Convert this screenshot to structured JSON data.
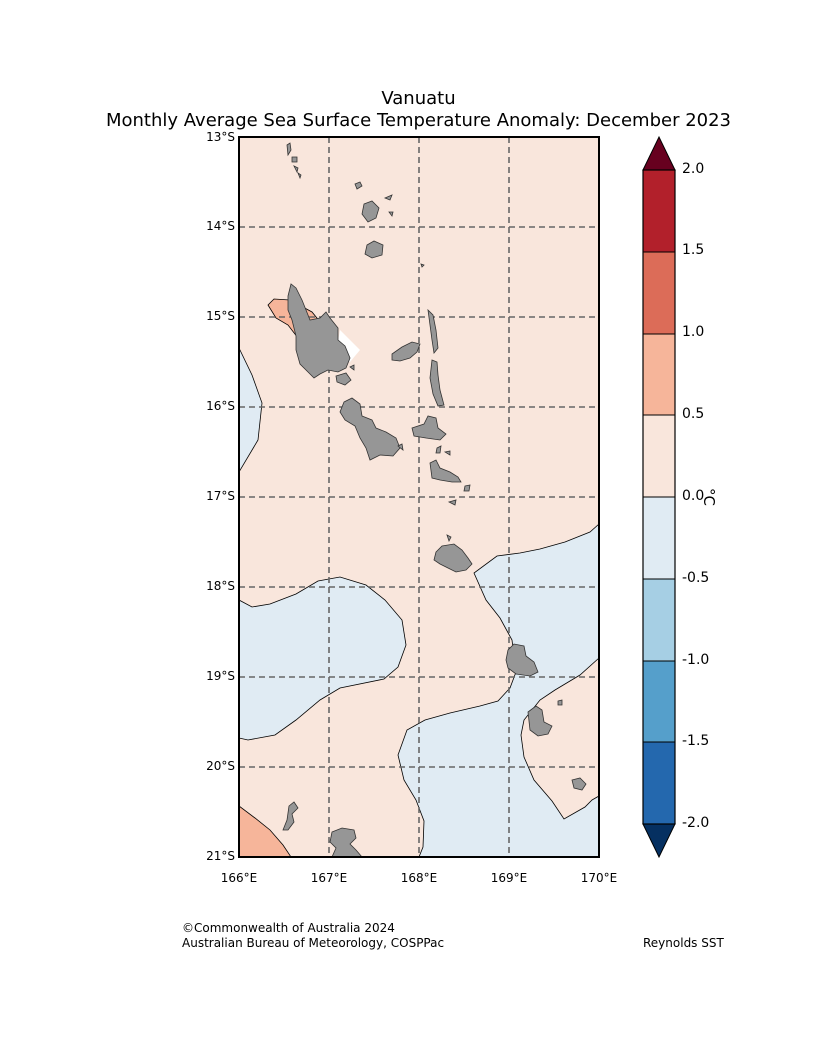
{
  "title": {
    "line1": "Vanuatu",
    "line2": "Monthly Average Sea Surface Temperature Anomaly: December 2023"
  },
  "map": {
    "lat_labels": [
      "13°S",
      "14°S",
      "15°S",
      "16°S",
      "17°S",
      "18°S",
      "19°S",
      "20°S",
      "21°S"
    ],
    "lon_labels": [
      "166°E",
      "167°E",
      "168°E",
      "169°E",
      "170°E"
    ],
    "land_color": "#969696",
    "gridlines": "dashed"
  },
  "colorbar": {
    "unit": "°C",
    "tick_labels": [
      "2.0",
      "1.5",
      "1.0",
      "0.5",
      "0.0",
      "-0.5",
      "-1.0",
      "-1.5",
      "-2.0"
    ],
    "colors_top_to_bottom": [
      "#b2202b",
      "#dc6c58",
      "#f6b59a",
      "#f9e6dc",
      "#e0ebf3",
      "#a6cfe4",
      "#559fcb",
      "#2468ae"
    ],
    "extend_max_color": "#67001f",
    "extend_min_color": "#053061"
  },
  "footer": {
    "copyright": "©Commonwealth of Australia 2024",
    "source": "Australian Bureau of Meteorology, COSPPac",
    "dataset": "Reynolds SST"
  }
}
